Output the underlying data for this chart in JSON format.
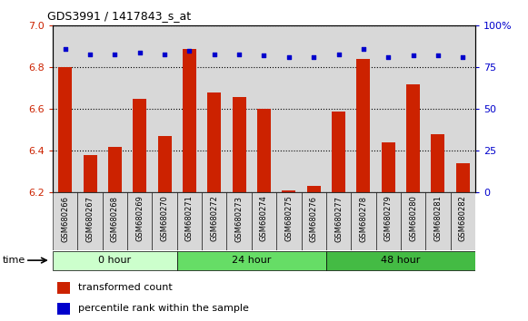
{
  "title": "GDS3991 / 1417843_s_at",
  "samples": [
    "GSM680266",
    "GSM680267",
    "GSM680268",
    "GSM680269",
    "GSM680270",
    "GSM680271",
    "GSM680272",
    "GSM680273",
    "GSM680274",
    "GSM680275",
    "GSM680276",
    "GSM680277",
    "GSM680278",
    "GSM680279",
    "GSM680280",
    "GSM680281",
    "GSM680282"
  ],
  "bar_values": [
    6.8,
    6.38,
    6.42,
    6.65,
    6.47,
    6.89,
    6.68,
    6.66,
    6.6,
    6.21,
    6.23,
    6.59,
    6.84,
    6.44,
    6.72,
    6.48,
    6.34
  ],
  "dot_values": [
    86,
    83,
    83,
    84,
    83,
    85,
    83,
    83,
    82,
    81,
    81,
    83,
    86,
    81,
    82,
    82,
    81
  ],
  "bar_base": 6.2,
  "ylim_left": [
    6.2,
    7.0
  ],
  "ylim_right": [
    0,
    100
  ],
  "yticks_left": [
    6.2,
    6.4,
    6.6,
    6.8,
    7.0
  ],
  "yticks_right": [
    0,
    25,
    50,
    75,
    100
  ],
  "yticklabels_right": [
    "0",
    "25",
    "50",
    "75",
    "100%"
  ],
  "bar_color": "#cc2200",
  "dot_color": "#0000cc",
  "col_bg_color": "#d8d8d8",
  "plot_bg_color": "#ffffff",
  "groups": [
    {
      "label": "0 hour",
      "start": 0,
      "end": 5,
      "color": "#ccffcc"
    },
    {
      "label": "24 hour",
      "start": 5,
      "end": 11,
      "color": "#66dd66"
    },
    {
      "label": "48 hour",
      "start": 11,
      "end": 17,
      "color": "#44bb44"
    }
  ],
  "legend_items": [
    {
      "label": "transformed count",
      "color": "#cc2200"
    },
    {
      "label": "percentile rank within the sample",
      "color": "#0000cc"
    }
  ]
}
